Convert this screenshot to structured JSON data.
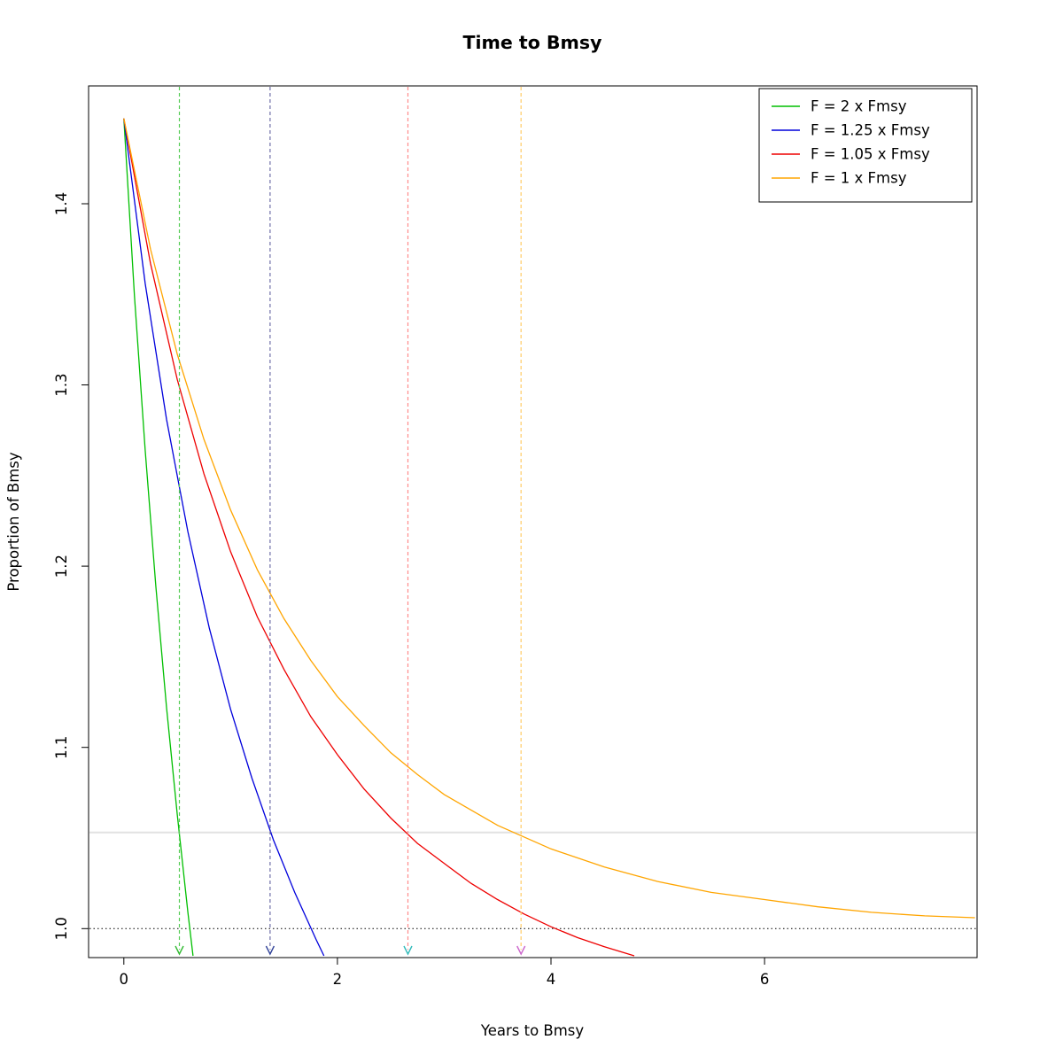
{
  "chart_data": {
    "type": "line",
    "title": "Time to Bmsy",
    "xlabel": "Years to Bmsy",
    "ylabel": "Proportion of Bmsy",
    "xlim": [
      -0.33,
      7.99
    ],
    "ylim": [
      0.984,
      1.465
    ],
    "grid": "off",
    "legend_position": "topright",
    "xticks": {
      "values": [
        0,
        2,
        4,
        6
      ],
      "labels": [
        "0",
        "2",
        "4",
        "6"
      ]
    },
    "yticks": {
      "values": [
        1.0,
        1.1,
        1.2,
        1.3,
        1.4
      ],
      "labels": [
        "1.0",
        "1.1",
        "1.2",
        "1.3",
        "1.4"
      ]
    },
    "reference_lines": [
      {
        "name": "threshold-gray-line",
        "y": 1.053,
        "color": "#e2e2e2",
        "style": "solid",
        "width": 2
      },
      {
        "name": "bmsy-dotted-line",
        "y": 1.0,
        "color": "#000000",
        "style": "dotted",
        "width": 1
      }
    ],
    "series": [
      {
        "name": "F = 2 x Fmsy",
        "color": "#00BF00",
        "time_to_threshold": 0.52,
        "marker": {
          "x": 0.52,
          "line_color": "#55CC55",
          "arrow_color": "#33BB33"
        },
        "points": [
          [
            0,
            1.447
          ],
          [
            0.1,
            1.349
          ],
          [
            0.2,
            1.264
          ],
          [
            0.3,
            1.189
          ],
          [
            0.4,
            1.122
          ],
          [
            0.5,
            1.063
          ],
          [
            0.6,
            1.009
          ],
          [
            0.648,
            0.985
          ]
        ]
      },
      {
        "name": "F = 1.25 x Fmsy",
        "color": "#0000DC",
        "time_to_threshold": 1.37,
        "marker": {
          "x": 1.37,
          "line_color": "#7070A8",
          "arrow_color": "#334499"
        },
        "points": [
          [
            0,
            1.447
          ],
          [
            0.2,
            1.356
          ],
          [
            0.4,
            1.281
          ],
          [
            0.6,
            1.219
          ],
          [
            0.8,
            1.166
          ],
          [
            1.0,
            1.121
          ],
          [
            1.2,
            1.083
          ],
          [
            1.4,
            1.049
          ],
          [
            1.6,
            1.02
          ],
          [
            1.8,
            0.994
          ],
          [
            1.874,
            0.985
          ]
        ]
      },
      {
        "name": "F = 1.05 x Fmsy",
        "color": "#EE0000",
        "time_to_threshold": 2.66,
        "marker": {
          "x": 2.66,
          "line_color": "#FF8A8A",
          "arrow_color": "#33BBBB"
        },
        "points": [
          [
            0,
            1.447
          ],
          [
            0.25,
            1.367
          ],
          [
            0.5,
            1.303
          ],
          [
            0.75,
            1.251
          ],
          [
            1.0,
            1.208
          ],
          [
            1.25,
            1.172
          ],
          [
            1.5,
            1.143
          ],
          [
            1.75,
            1.117
          ],
          [
            2.0,
            1.096
          ],
          [
            2.25,
            1.077
          ],
          [
            2.5,
            1.061
          ],
          [
            2.75,
            1.047
          ],
          [
            3.0,
            1.036
          ],
          [
            3.25,
            1.025
          ],
          [
            3.5,
            1.016
          ],
          [
            3.75,
            1.008
          ],
          [
            4.0,
            1.001
          ],
          [
            4.25,
            0.995
          ],
          [
            4.5,
            0.99
          ],
          [
            4.78,
            0.985
          ]
        ]
      },
      {
        "name": "F = 1 x Fmsy",
        "color": "#FFA500",
        "time_to_threshold": 3.72,
        "marker": {
          "x": 3.72,
          "line_color": "#FFCC66",
          "arrow_color": "#CC66CC"
        },
        "points": [
          [
            0,
            1.447
          ],
          [
            0.25,
            1.375
          ],
          [
            0.5,
            1.317
          ],
          [
            0.75,
            1.27
          ],
          [
            1.0,
            1.231
          ],
          [
            1.25,
            1.198
          ],
          [
            1.5,
            1.171
          ],
          [
            1.75,
            1.148
          ],
          [
            2.0,
            1.128
          ],
          [
            2.25,
            1.112
          ],
          [
            2.5,
            1.097
          ],
          [
            2.75,
            1.085
          ],
          [
            3.0,
            1.074
          ],
          [
            3.5,
            1.057
          ],
          [
            4.0,
            1.044
          ],
          [
            4.5,
            1.034
          ],
          [
            5.0,
            1.026
          ],
          [
            5.5,
            1.02
          ],
          [
            6.0,
            1.016
          ],
          [
            6.5,
            1.012
          ],
          [
            7.0,
            1.009
          ],
          [
            7.5,
            1.007
          ],
          [
            7.97,
            1.006
          ]
        ]
      }
    ]
  }
}
